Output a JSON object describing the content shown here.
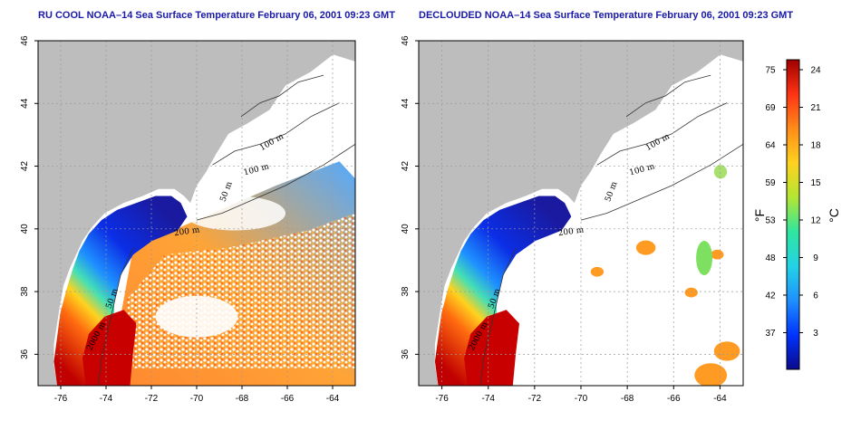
{
  "panels": [
    {
      "id": "left",
      "title": "RU COOL NOAA–14 Sea Surface Temperature February 06, 2001 09:23 GMT",
      "clouded": true
    },
    {
      "id": "right",
      "title": "DECLOUDED NOAA–14 Sea Surface Temperature February 06, 2001 09:23 GMT",
      "clouded": false
    }
  ],
  "map": {
    "lon_range": [
      -77,
      -63
    ],
    "lat_range": [
      35,
      46
    ],
    "lon_ticks": [
      "-76",
      "-74",
      "-72",
      "-70",
      "-68",
      "-66",
      "-64"
    ],
    "lat_ticks": [
      "36",
      "38",
      "40",
      "42",
      "44",
      "46"
    ],
    "contour_labels": [
      "100 m",
      "100 m",
      "50 m",
      "200 m",
      "50 m",
      "2000 m"
    ],
    "colors": {
      "land": "#bdbdbd",
      "cloud": "#ffffff",
      "grid": "#9a9a9a",
      "contour": "#333333"
    }
  },
  "colorbar": {
    "fahrenheit_ticks": [
      "75",
      "69",
      "64",
      "59",
      "53",
      "48",
      "42",
      "37"
    ],
    "celsius_ticks": [
      "24",
      "21",
      "18",
      "15",
      "12",
      "9",
      "6",
      "3"
    ],
    "fahrenheit_unit": "°F",
    "celsius_unit": "°C",
    "gradient": [
      "#0a0a8c",
      "#0033ff",
      "#1e90ff",
      "#22d3e6",
      "#2ee6a0",
      "#b4e632",
      "#ffd21e",
      "#ff8c19",
      "#ff3214",
      "#a00000"
    ]
  }
}
